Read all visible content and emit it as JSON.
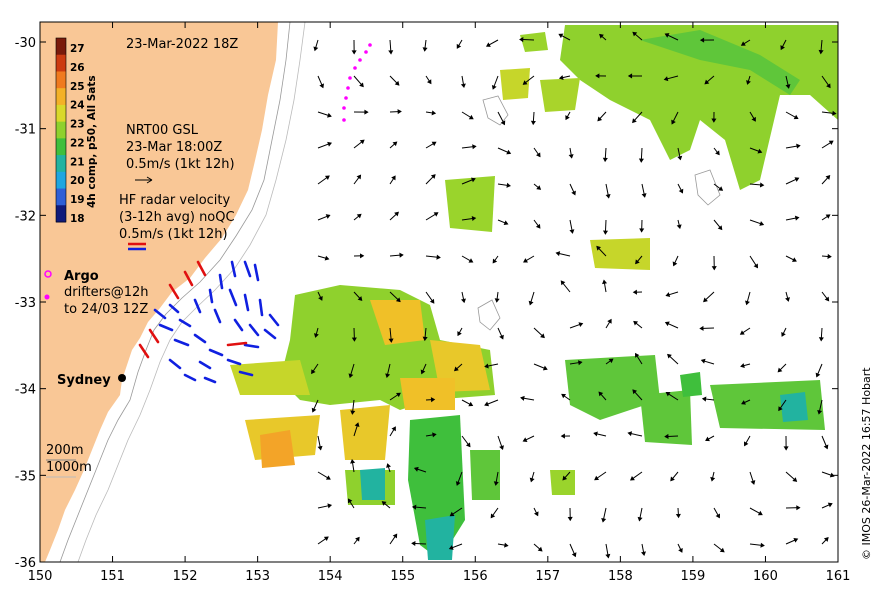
{
  "map": {
    "title": "23-Mar-2022 18Z",
    "x_ticks": [
      "150",
      "151",
      "152",
      "153",
      "154",
      "155",
      "156",
      "157",
      "158",
      "159",
      "160",
      "161"
    ],
    "y_ticks": [
      "-30",
      "-31",
      "-32",
      "-33",
      "-34",
      "-35",
      "-36"
    ],
    "credit": "© IMOS 26-Mar-2022 16:57 Hobart"
  },
  "colorbar": {
    "label": "4h comp, p50, All Sats",
    "ticks": [
      "27",
      "26",
      "25",
      "24",
      "23",
      "22",
      "21",
      "20",
      "19",
      "18"
    ],
    "colors": [
      "#7a1a0a",
      "#cc3b10",
      "#f07a1e",
      "#f3b127",
      "#d9d82a",
      "#8fd12d",
      "#3fbf3c",
      "#22b3a0",
      "#1fa6e0",
      "#2f5fd6",
      "#101a7a"
    ]
  },
  "legend": {
    "current_title": "NRT00 GSL",
    "current_time": "23-Mar 18:00Z",
    "current_scale": "0.5m/s (1kt 12h)",
    "hf_title": "HF radar velocity",
    "hf_sub": "(3-12h avg) noQC",
    "hf_scale": "0.5m/s (1kt 12h)",
    "argo": "Argo",
    "drifters_1": "drifters@12h",
    "drifters_2": "to 24/03 12Z",
    "contour_200": "200m",
    "contour_1000": "1000m",
    "sydney": "Sydney"
  },
  "colors": {
    "land": "#f9c796",
    "current_arrow": "#000000",
    "hf_radar": "#1020e0",
    "hf_red": "#e01010",
    "drifter": "#ff00ff"
  }
}
